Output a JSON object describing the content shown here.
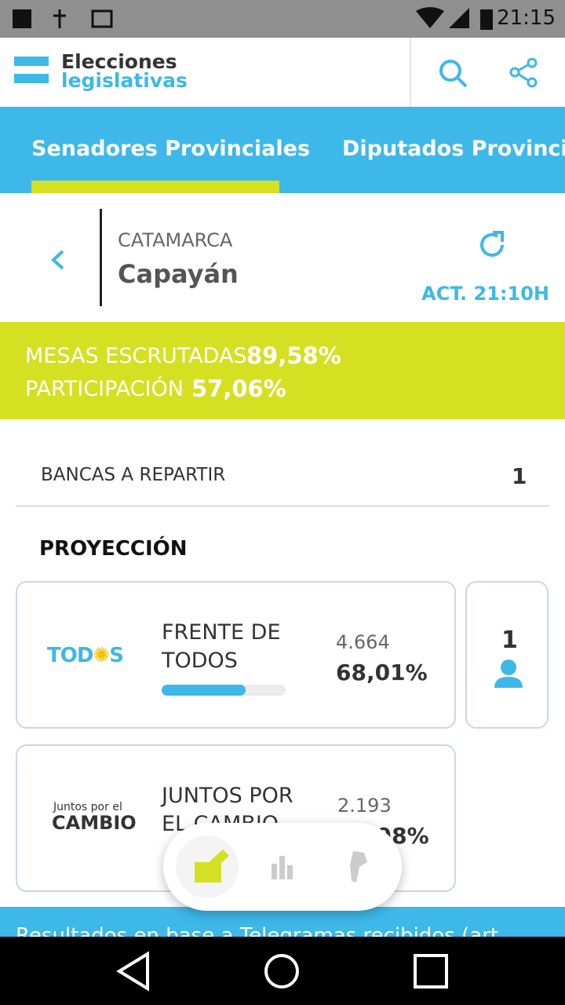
{
  "status_bar": {
    "time": "21:15"
  },
  "header": {
    "title_top": "Elecciones",
    "title_bottom": "legislativas"
  },
  "tabs": [
    "Senadores Provinciales",
    "Diputados Provinciales"
  ],
  "location": {
    "province": "CATAMARCA",
    "department": "Capayán",
    "updated": "ACT. 21:10H"
  },
  "stats": [
    {
      "label": "MESAS ESCRUTADAS",
      "value": "89,58%"
    },
    {
      "label": "PARTICIPACIÓN",
      "value": "57,06%"
    }
  ],
  "seats_row": {
    "label": "BANCAS A REPARTIR",
    "value": "1"
  },
  "section_title": "PROYECCIÓN",
  "parties": [
    {
      "logo": [
        "TOD",
        "S"
      ],
      "name": "FRENTE DE TODOS",
      "votes": "4.664",
      "percent": "68,01%",
      "bar_percent": 68.01,
      "seats": "1"
    },
    {
      "logo": [
        "Juntos por el",
        "CAMBIO"
      ],
      "name": "JUNTOS POR EL CAMBIO",
      "votes": "2.193",
      "percent": "31,98%"
    }
  ],
  "footer": "Resultados en base a Telegramas recibidos (art"
}
